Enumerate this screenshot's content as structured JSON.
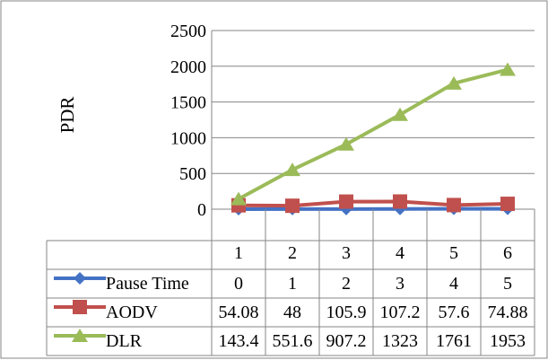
{
  "chart_data": {
    "type": "line",
    "ylabel": "PDR",
    "ylim": [
      0,
      2500
    ],
    "yticks": [
      "0",
      "500",
      "1000",
      "1500",
      "2000",
      "2500"
    ],
    "categories": [
      "1",
      "2",
      "3",
      "4",
      "5",
      "6"
    ],
    "grid": true,
    "legend_placement": "data-table-left",
    "series": [
      {
        "name": "Pause Time",
        "color": "#4472C4",
        "marker": "diamond",
        "values": [
          0,
          1,
          2,
          3,
          4,
          5
        ],
        "labels": [
          "0",
          "1",
          "2",
          "3",
          "4",
          "5"
        ]
      },
      {
        "name": "AODV",
        "color": "#C0504D",
        "marker": "square",
        "values": [
          54.08,
          48,
          105.9,
          107.2,
          57.6,
          74.88
        ],
        "labels": [
          "54.08",
          "48",
          "105.9",
          "107.2",
          "57.6",
          "74.88"
        ]
      },
      {
        "name": "DLR",
        "color": "#9BBB59",
        "marker": "triangle",
        "values": [
          143.4,
          551.6,
          907.2,
          1323,
          1761,
          1953
        ],
        "labels": [
          "143.4",
          "551.6",
          "907.2",
          "1323",
          "1761",
          "1953"
        ]
      }
    ]
  }
}
